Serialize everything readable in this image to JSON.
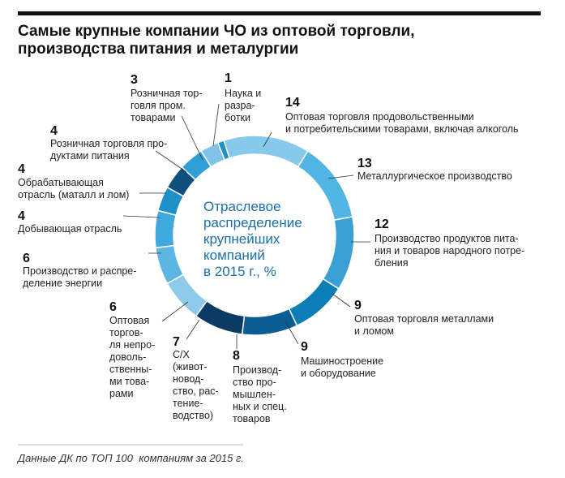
{
  "chart_data": {
    "type": "donut",
    "title": "Самые крупные компании ЧО из оптовой торговли,\nпроизводства питания и металургии",
    "center_label": "Отраслевое\nраспределение\nкрупнейших\nкомпаний\nв 2015 г., %",
    "categories": [
      "Оптовая торговля продовольственными\nи потребительскими товарами, включая алкоголь",
      "Металлургическое производство",
      "Производство продуктов пита-\nния и товаров народного потре-\nбления",
      "Оптовая торговля металлами\nи ломом",
      "Машиностроение\nи оборудование",
      "Производ-\nство про-\nмышлен-\nных и спец.\nтоваров",
      "С/Х\n(живот-\nновод-\nство, рас-\nтение-\nводство)",
      "Оптовая\nторгов-\nля непро-\nдоволь-\nственны-\nми това-\nрами",
      "Производство и распре-\nделение энергии",
      "Добывающая отрасль",
      "Обрабатывающая\nотрасль (маталл и лом)",
      "Розничная торговля про-\nдуктами питания",
      "Розничная тор-\nговля пром.\nтоварами",
      "Наука и\nразра-\nботки"
    ],
    "values": [
      14,
      13,
      12,
      9,
      9,
      8,
      7,
      6,
      6,
      4,
      4,
      4,
      3,
      1
    ],
    "colors": [
      "#86c9eb",
      "#52b4e3",
      "#3a9fd2",
      "#0b7db7",
      "#0a5d92",
      "#0b3b63",
      "#8fcaea",
      "#5db6e2",
      "#3fa8dc",
      "#1f8fc8",
      "#0e4f7d",
      "#2f9fd6",
      "#7fc4e8",
      "#1f8fc8"
    ],
    "source": "Данные ДК по ТОП 100  компаниям за 2015 г."
  }
}
